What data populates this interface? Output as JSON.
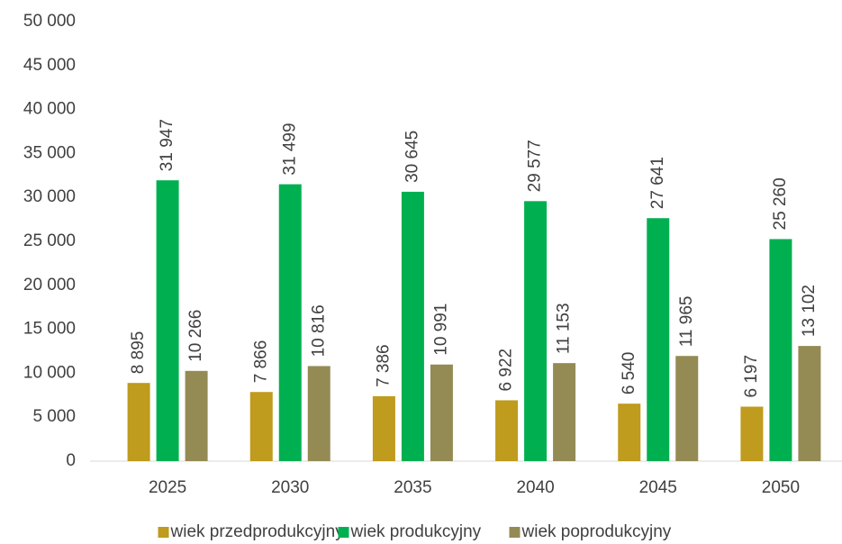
{
  "chart_data": {
    "type": "bar",
    "categories": [
      "2025",
      "2030",
      "2035",
      "2040",
      "2045",
      "2050"
    ],
    "series": [
      {
        "name": "wiek przedprodukcyjny",
        "color": "#bf9b1e",
        "values": [
          8895,
          7866,
          7386,
          6922,
          6540,
          6197
        ],
        "value_labels": [
          "8 895",
          "7 866",
          "7 386",
          "6 922",
          "6 540",
          "6 197"
        ]
      },
      {
        "name": "wiek produkcyjny",
        "color": "#00b050",
        "values": [
          31947,
          31499,
          30645,
          29577,
          27641,
          25260
        ],
        "value_labels": [
          "31 947",
          "31 499",
          "30 645",
          "29 577",
          "27 641",
          "25 260"
        ]
      },
      {
        "name": "wiek poprodukcyjny",
        "color": "#948a54",
        "values": [
          10266,
          10816,
          10991,
          11153,
          11965,
          13102
        ],
        "value_labels": [
          "10 266",
          "10 816",
          "10 991",
          "11 153",
          "11 965",
          "13 102"
        ]
      }
    ],
    "ylim": [
      0,
      50000
    ],
    "yticks": [
      0,
      {
        "value": 5000,
        "label": "5 000"
      },
      {
        "value": 10000,
        "label": "10 000"
      },
      {
        "value": 15000,
        "label": "15 000"
      },
      {
        "value": 20000,
        "label": "20 000"
      },
      {
        "value": 25000,
        "label": "25 000"
      },
      {
        "value": 30000,
        "label": "30 000"
      },
      {
        "value": 35000,
        "label": "35 000"
      },
      {
        "value": 40000,
        "label": "40 000"
      },
      {
        "value": 45000,
        "label": "45 000"
      },
      {
        "value": 50000,
        "label": "50 000"
      }
    ],
    "grid": false,
    "legend": "bottom"
  }
}
